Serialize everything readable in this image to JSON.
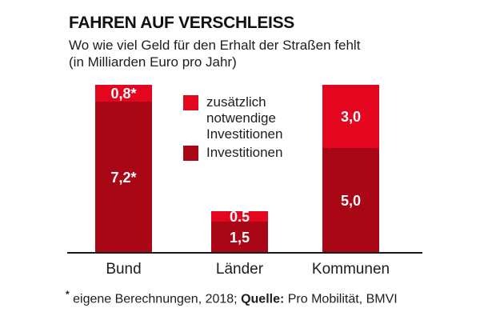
{
  "header": {
    "title": "FAHREN AUF VERSCHLEISS",
    "subtitle_line1": "Wo wie viel Geld für den Erhalt der Straßen fehlt",
    "subtitle_line2": "(in Milliarden Euro pro Jahr)"
  },
  "legend": {
    "items": [
      {
        "label": "zusätzlich notwendige Investitionen",
        "color": "#e3061e"
      },
      {
        "label": "Investitionen",
        "color": "#a90616"
      }
    ]
  },
  "footnote": {
    "star": "*",
    "text_before": " eigene Berechnungen, 2018; ",
    "source_label": "Quelle:",
    "source_text": " Pro Mobilität, BMVI"
  },
  "chart_data": {
    "type": "bar",
    "stacked": true,
    "title": "FAHREN AUF VERSCHLEISS",
    "subtitle": "Wo wie viel Geld für den Erhalt der Straßen fehlt (in Milliarden Euro pro Jahr)",
    "categories": [
      "Bund",
      "Länder",
      "Kommunen"
    ],
    "series": [
      {
        "name": "zusätzlich notwendige Investitionen",
        "values": [
          0.8,
          0.5,
          3.0
        ],
        "labels": [
          "0,8*",
          "0,5",
          "3,0"
        ],
        "color": "#e3061e"
      },
      {
        "name": "Investitionen",
        "values": [
          7.2,
          1.5,
          5.0
        ],
        "labels": [
          "7,2*",
          "1,5",
          "5,0"
        ],
        "color": "#a90616"
      }
    ],
    "unit": "Milliarden Euro pro Jahr",
    "ylim": [
      0,
      8
    ],
    "grid": false,
    "legend_position": "inside-top-center"
  },
  "colors": {
    "bright_red": "#e3061e",
    "dark_red": "#a90616",
    "text": "#1d1d1b",
    "axis": "#1a1a1a",
    "background": "#ffffff"
  }
}
